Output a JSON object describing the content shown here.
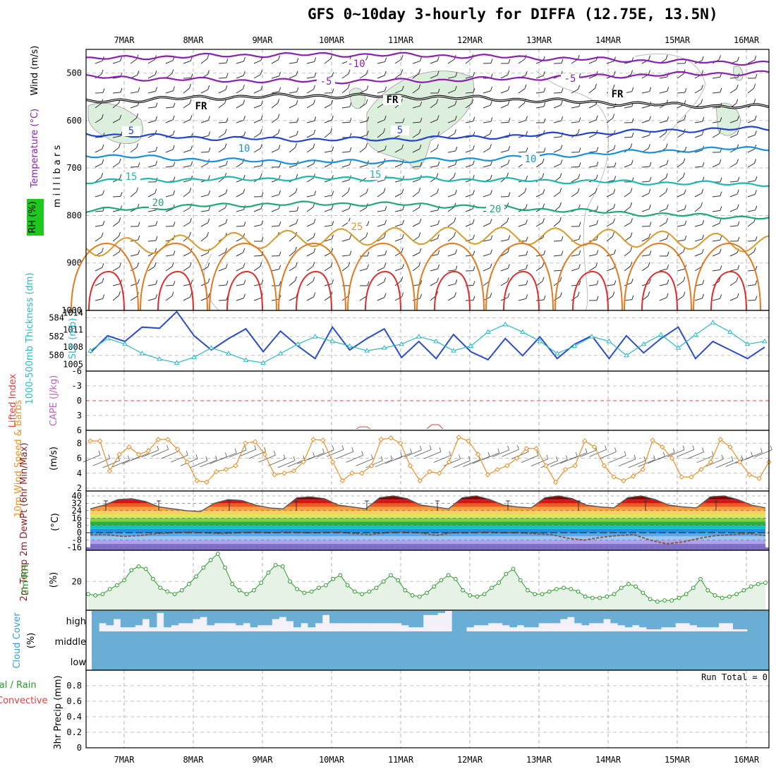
{
  "title": "GFS 0~10day 3-hourly for DIFFA (12.75E, 13.5N)",
  "date_labels": [
    "7MAR",
    "8MAR",
    "9MAR",
    "10MAR",
    "11MAR",
    "12MAR",
    "13MAR",
    "14MAR",
    "15MAR",
    "16MAR"
  ],
  "colors": {
    "temp_cold": "#8b1fb0",
    "temp_cool": "#2244cc",
    "temp_10": "#1a90d8",
    "temp_15": "#1fb8b0",
    "temp_20": "#20a878",
    "temp_25": "#d89a2a",
    "temp_30": "#e07a20",
    "temp_35": "#e02a2a",
    "slp": "#2a4cc8",
    "thickness": "#2ab8c8",
    "wind10m": "#e8902a",
    "rh2m": "#2a9a2a",
    "cloud": "#6aaed6",
    "cape_line": "#e04040"
  },
  "chart_data": [
    {
      "type": "line",
      "panel": "upper-air cross-section",
      "ylabel": "millibars",
      "side_labels": [
        "Wind (m/s)",
        "Temperature (°C)",
        "RH (%)"
      ],
      "y_ticks": [
        500,
        600,
        700,
        800,
        900,
        1000
      ],
      "ylim": [
        1000,
        450
      ],
      "contours": [
        {
          "label": "-10",
          "level_mb": 470
        },
        {
          "label": "-5",
          "level_mb": 510
        },
        {
          "label": "FR",
          "level_mb": 570
        },
        {
          "label": "5",
          "level_mb": 628
        },
        {
          "label": "10",
          "level_mb": 675
        },
        {
          "label": "15",
          "level_mb": 728
        },
        {
          "label": "20",
          "level_mb": 795
        },
        {
          "label": "25",
          "level_mb": 845
        }
      ]
    },
    {
      "type": "line",
      "panel": "thickness and SLP",
      "left_label": "1000-500mb Thickness (dm)",
      "right_label": "SLP (mb)",
      "left_ticks": [
        580,
        582,
        584
      ],
      "right_ticks": [
        1005,
        1008,
        1011,
        1014
      ],
      "series": [
        {
          "name": "SLP (mb)",
          "values": [
            1007,
            1010,
            1009,
            1011.5,
            1011.3,
            1014.2,
            1010,
            1007.5,
            1009.5,
            1011.2,
            1007.2,
            1010.8,
            1008.2,
            1006,
            1011.5,
            1007.5,
            1009.5,
            1011.2,
            1006.2,
            1009,
            1006,
            1010.2,
            1007.2,
            1005.8,
            1009.5,
            1006.5,
            1009.8,
            1006,
            1008.5,
            1010,
            1006,
            1010,
            1007,
            1009.5,
            1011.5,
            1006,
            1009,
            1007.5,
            1006,
            1008
          ]
        },
        {
          "name": "Thickness (dm)",
          "values": [
            580.5,
            581.8,
            581.2,
            580.2,
            579.6,
            579.2,
            579.8,
            580.8,
            580.2,
            579.5,
            579.2,
            580.2,
            581.2,
            582,
            581.5,
            581,
            580.5,
            580.8,
            581.2,
            582,
            581.5,
            580.5,
            581,
            582.5,
            583.3,
            582.5,
            581.5,
            580.2,
            581,
            582,
            581.5,
            580,
            581.2,
            582.2,
            580.8,
            582.2,
            583.5,
            582.5,
            581.2,
            581.5
          ]
        }
      ]
    },
    {
      "type": "line",
      "panel": "lifted index and CAPE",
      "left_label": "Lifted Index",
      "right_label": "CAPE (J/kg)",
      "y_ticks": [
        "-6",
        "-3",
        "0",
        "3",
        "6"
      ],
      "series": [
        {
          "name": "Lifted Index",
          "values": [
            0,
            0,
            0,
            0,
            0,
            0,
            0,
            0,
            0,
            0
          ]
        }
      ]
    },
    {
      "type": "line",
      "panel": "10m wind",
      "left_label": "10m Wind Speed & Barbs",
      "unit": "(m/s)",
      "y_ticks": [
        2,
        4,
        6,
        8
      ],
      "ylim": [
        2,
        9
      ],
      "series": [
        {
          "name": "10m Wind Speed",
          "values": [
            8.3,
            8.3,
            4.3,
            6.5,
            7.5,
            6.5,
            7,
            8.5,
            8.5,
            7.2,
            5.5,
            3,
            2.8,
            4.2,
            4.5,
            5,
            8,
            8.2,
            6.5,
            3.8,
            4,
            4.3,
            5.5,
            8.5,
            8.4,
            5.5,
            3,
            4,
            4,
            5,
            8.5,
            8.7,
            8,
            5,
            3,
            4.2,
            4,
            5.5,
            8.8,
            8.3,
            6.5,
            3.8,
            4.5,
            5,
            6,
            7.3,
            7.3,
            5,
            2.8,
            4.5,
            5,
            8.3,
            7.5,
            5,
            3.5,
            3,
            3.6,
            4.5,
            8.4,
            7.5,
            6,
            3.5,
            3.5,
            4.5,
            5.5,
            8.5,
            7.5,
            5.5,
            3.8,
            3.3,
            5.5
          ]
        }
      ]
    },
    {
      "type": "area",
      "panel": "2m temperature",
      "left_label": "2m Temp 2m DewPt (6hr Min/Max)",
      "unit": "(°C)",
      "y_ticks": [
        "40",
        "32",
        "24",
        "16",
        "8",
        "0",
        "-8",
        "-16"
      ],
      "ylim": [
        -16,
        40
      ],
      "series": [
        {
          "name": "2m Temp",
          "values": [
            26,
            30,
            36,
            37,
            34,
            28,
            26,
            24,
            23,
            32,
            36,
            35,
            30,
            27,
            26,
            38,
            39,
            37,
            30,
            28,
            26,
            38,
            40,
            37,
            30,
            28,
            26,
            38,
            40,
            36,
            30,
            28,
            27,
            38,
            40,
            37,
            30,
            28,
            27,
            38,
            40,
            36,
            30,
            28,
            27,
            39,
            40,
            36,
            30,
            27
          ]
        },
        {
          "name": "2m DewPt",
          "values": [
            -2,
            -2,
            -4,
            -3,
            -1,
            0,
            1,
            0,
            -1,
            0,
            1,
            0,
            1,
            0,
            0,
            1,
            -1,
            -2,
            0,
            1,
            0,
            -3,
            0,
            0,
            1,
            0,
            0,
            -1,
            -2,
            -6,
            -8,
            -5,
            -3,
            -2,
            -8,
            -12,
            -10,
            -6,
            -3,
            -2,
            -1,
            -3
          ]
        }
      ]
    },
    {
      "type": "area",
      "panel": "2m RH",
      "left_label": "2m RH",
      "unit": "(%)",
      "y_ticks": [
        20
      ],
      "ylim": [
        0,
        40
      ],
      "series": [
        {
          "name": "2m RH",
          "values": [
            10,
            9,
            10,
            14,
            17,
            21,
            29,
            32,
            30,
            22,
            15,
            12,
            10,
            13,
            18,
            24,
            31,
            37,
            42,
            31,
            18,
            13,
            10,
            13,
            19,
            27,
            33,
            32,
            20,
            14,
            11,
            12,
            15,
            17,
            22,
            25,
            17,
            12,
            10,
            12,
            15,
            20,
            25,
            21,
            13,
            9,
            8,
            11,
            16,
            21,
            25,
            22,
            13,
            9,
            8,
            10,
            15,
            19,
            26,
            30,
            21,
            13,
            10,
            10,
            12,
            14,
            15,
            14,
            12,
            8,
            7,
            7,
            8,
            10,
            15,
            18,
            16,
            11,
            6,
            4,
            5,
            5,
            7,
            10,
            15,
            22,
            13,
            9,
            7,
            8,
            10,
            13,
            16,
            18,
            19
          ]
        }
      ]
    },
    {
      "type": "bar",
      "panel": "cloud cover",
      "left_label": "Cloud Cover",
      "unit": "(%)",
      "y_ticks": [
        "high",
        "middle",
        "low"
      ],
      "series": [
        {
          "name": "high cloud",
          "values": [
            100,
            60,
            70,
            40,
            80,
            80,
            70,
            40,
            80,
            10,
            80,
            70,
            60,
            60,
            40,
            30,
            70,
            60,
            60,
            60,
            70,
            60,
            80,
            70,
            70,
            40,
            30,
            50,
            80,
            60,
            80,
            60,
            20,
            60,
            60,
            60,
            60,
            60,
            60,
            60,
            60,
            60,
            60,
            70,
            80,
            80,
            20,
            20,
            10,
            0,
            100,
            100,
            80,
            70,
            70,
            60,
            60,
            70,
            80,
            70,
            80,
            80,
            60,
            60,
            60,
            40,
            30,
            60,
            70,
            60,
            60,
            40,
            60,
            70,
            80,
            70,
            80,
            90,
            90,
            80,
            80,
            60,
            60,
            70,
            80,
            80,
            80,
            60,
            60,
            90,
            90,
            100,
            100,
            100
          ]
        }
      ]
    },
    {
      "type": "bar",
      "panel": "precipitation",
      "left_label": "Total / Rain Convective",
      "ylabel": "3hr Precip (mm)",
      "annotation": "Run Total = 0",
      "y_ticks": [
        "0",
        "0.2",
        "0.4",
        "0.6",
        "0.8"
      ],
      "ylim": [
        0,
        0.9
      ],
      "series": [
        {
          "name": "Total",
          "values": [
            0,
            0,
            0,
            0,
            0,
            0,
            0,
            0,
            0,
            0
          ]
        }
      ]
    }
  ]
}
